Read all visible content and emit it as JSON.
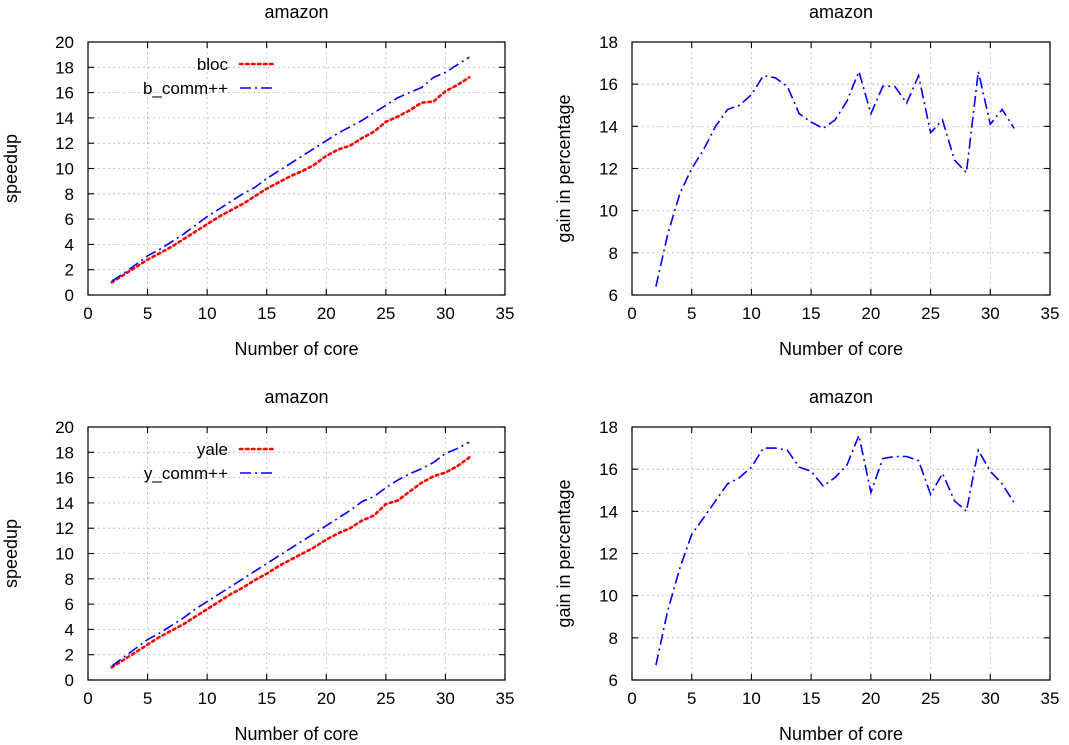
{
  "chart_data": [
    {
      "type": "line",
      "title": "amazon",
      "xlabel": "Number of core",
      "ylabel": "speedup",
      "xlim": [
        0,
        35
      ],
      "ylim": [
        0,
        20
      ],
      "xticks": [
        0,
        5,
        10,
        15,
        20,
        25,
        30,
        35
      ],
      "yticks": [
        0,
        2,
        4,
        6,
        8,
        10,
        12,
        14,
        16,
        18,
        20
      ],
      "grid": true,
      "legend_position": "top-left",
      "x": [
        2,
        3,
        4,
        5,
        6,
        7,
        8,
        9,
        10,
        11,
        12,
        13,
        14,
        15,
        16,
        17,
        18,
        19,
        20,
        21,
        22,
        23,
        24,
        25,
        26,
        27,
        28,
        29,
        30,
        31,
        32
      ],
      "series": [
        {
          "name": "bloc",
          "color": "#ff0000",
          "dash": "dotted",
          "values": [
            1.0,
            1.6,
            2.2,
            2.8,
            3.3,
            3.8,
            4.4,
            5.0,
            5.6,
            6.2,
            6.7,
            7.2,
            7.8,
            8.4,
            8.9,
            9.4,
            9.8,
            10.3,
            11.0,
            11.5,
            11.8,
            12.4,
            12.9,
            13.7,
            14.1,
            14.6,
            15.2,
            15.3,
            16.1,
            16.6,
            17.2
          ]
        },
        {
          "name": "b_comm++",
          "color": "#0000ff",
          "dash": "dashdot",
          "values": [
            1.1,
            1.7,
            2.4,
            3.1,
            3.6,
            4.2,
            4.8,
            5.5,
            6.2,
            6.8,
            7.4,
            8.0,
            8.5,
            9.2,
            9.8,
            10.4,
            11.0,
            11.6,
            12.2,
            12.8,
            13.3,
            13.8,
            14.4,
            15.0,
            15.6,
            16.0,
            16.4,
            17.2,
            17.6,
            18.2,
            18.8
          ]
        }
      ]
    },
    {
      "type": "line",
      "title": "amazon",
      "xlabel": "Number of core",
      "ylabel": "gain in percentage",
      "xlim": [
        0,
        35
      ],
      "ylim": [
        6,
        18
      ],
      "xticks": [
        0,
        5,
        10,
        15,
        20,
        25,
        30,
        35
      ],
      "yticks": [
        6,
        8,
        10,
        12,
        14,
        16,
        18
      ],
      "grid": true,
      "x": [
        2,
        3,
        4,
        5,
        6,
        7,
        8,
        9,
        10,
        11,
        12,
        13,
        14,
        15,
        16,
        17,
        18,
        19,
        20,
        21,
        22,
        23,
        24,
        25,
        26,
        27,
        28,
        29,
        30,
        31,
        32
      ],
      "series": [
        {
          "color": "#0000ff",
          "dash": "dashdot",
          "values": [
            6.4,
            8.9,
            10.8,
            12.0,
            12.9,
            14.0,
            14.8,
            15.0,
            15.5,
            16.4,
            16.3,
            15.9,
            14.6,
            14.2,
            13.9,
            14.3,
            15.2,
            16.6,
            14.6,
            15.9,
            15.9,
            15.1,
            16.4,
            13.7,
            14.3,
            12.4,
            11.8,
            16.6,
            14.1,
            14.8,
            13.9
          ]
        }
      ]
    },
    {
      "type": "line",
      "title": "amazon",
      "xlabel": "Number of core",
      "ylabel": "speedup",
      "xlim": [
        0,
        35
      ],
      "ylim": [
        0,
        20
      ],
      "xticks": [
        0,
        5,
        10,
        15,
        20,
        25,
        30,
        35
      ],
      "yticks": [
        0,
        2,
        4,
        6,
        8,
        10,
        12,
        14,
        16,
        18,
        20
      ],
      "grid": true,
      "legend_position": "top-left",
      "x": [
        2,
        3,
        4,
        5,
        6,
        7,
        8,
        9,
        10,
        11,
        12,
        13,
        14,
        15,
        16,
        17,
        18,
        19,
        20,
        21,
        22,
        23,
        24,
        25,
        26,
        27,
        28,
        29,
        30,
        31,
        32
      ],
      "series": [
        {
          "name": "yale",
          "color": "#ff0000",
          "dash": "dotted",
          "values": [
            1.0,
            1.6,
            2.2,
            2.8,
            3.4,
            3.9,
            4.4,
            5.0,
            5.6,
            6.2,
            6.8,
            7.3,
            7.9,
            8.4,
            9.0,
            9.5,
            10.0,
            10.5,
            11.1,
            11.6,
            12.0,
            12.6,
            13.0,
            13.9,
            14.2,
            14.9,
            15.6,
            16.1,
            16.4,
            16.9,
            17.6
          ]
        },
        {
          "name": "y_comm++",
          "color": "#0000ff",
          "dash": "dashdot",
          "values": [
            1.1,
            1.8,
            2.5,
            3.2,
            3.7,
            4.3,
            4.9,
            5.6,
            6.2,
            6.8,
            7.4,
            8.0,
            8.6,
            9.2,
            9.8,
            10.4,
            11.0,
            11.6,
            12.2,
            12.8,
            13.4,
            14.1,
            14.5,
            15.2,
            15.8,
            16.3,
            16.7,
            17.2,
            17.9,
            18.3,
            18.8
          ]
        }
      ]
    },
    {
      "type": "line",
      "title": "amazon",
      "xlabel": "Number of core",
      "ylabel": "gain in percentage",
      "xlim": [
        0,
        35
      ],
      "ylim": [
        6,
        18
      ],
      "xticks": [
        0,
        5,
        10,
        15,
        20,
        25,
        30,
        35
      ],
      "yticks": [
        6,
        8,
        10,
        12,
        14,
        16,
        18
      ],
      "grid": true,
      "x": [
        2,
        3,
        4,
        5,
        6,
        7,
        8,
        9,
        10,
        11,
        12,
        13,
        14,
        15,
        16,
        17,
        18,
        19,
        20,
        21,
        22,
        23,
        24,
        25,
        26,
        27,
        28,
        29,
        30,
        31,
        32
      ],
      "series": [
        {
          "color": "#0000ff",
          "dash": "dashdot",
          "values": [
            6.7,
            9.3,
            11.3,
            12.9,
            13.7,
            14.5,
            15.3,
            15.6,
            16.1,
            17.0,
            17.0,
            16.9,
            16.1,
            15.9,
            15.2,
            15.6,
            16.2,
            17.6,
            14.9,
            16.5,
            16.6,
            16.6,
            16.4,
            14.8,
            15.8,
            14.5,
            14.0,
            16.9,
            15.9,
            15.3,
            14.4
          ]
        }
      ]
    }
  ]
}
